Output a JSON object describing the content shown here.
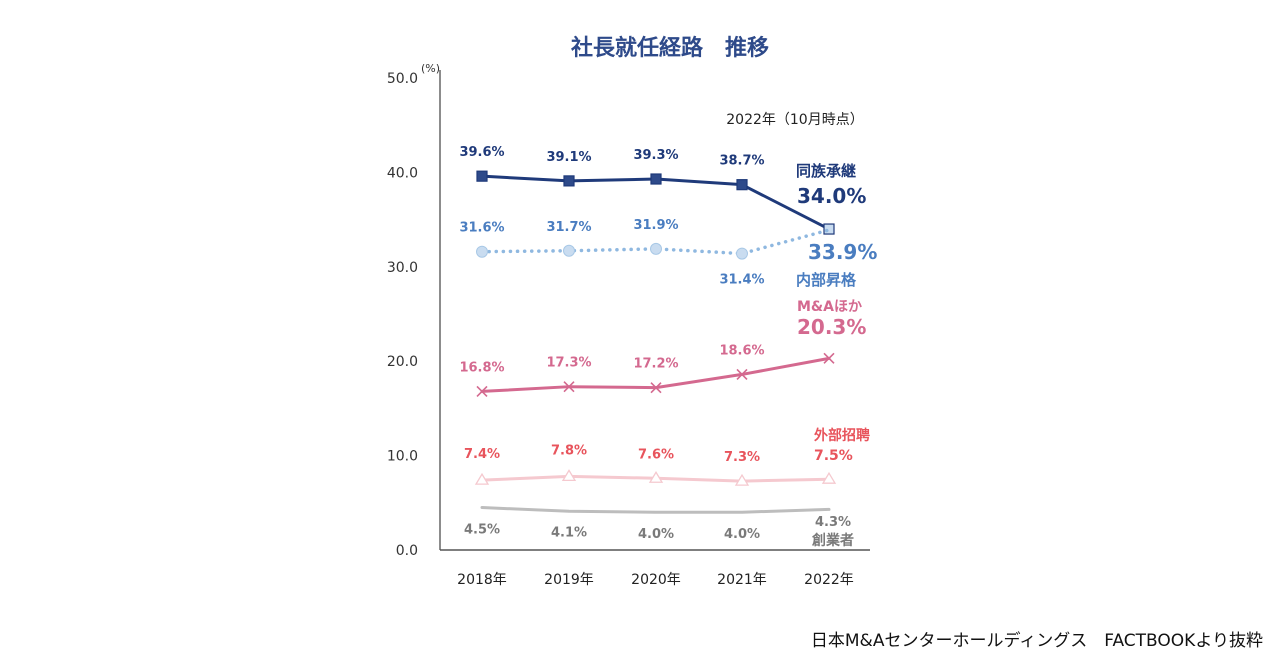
{
  "chart_data": {
    "type": "line",
    "title": "社長就任経路　推移",
    "xlabel": "",
    "ylabel": "",
    "y_unit_label": "(%)",
    "ylim": [
      0,
      50
    ],
    "yticks": [
      "0.0",
      "10.0",
      "20.0",
      "30.0",
      "40.0",
      "50.0"
    ],
    "ytick_values": [
      0,
      10,
      20,
      30,
      40,
      50
    ],
    "grid": false,
    "categories": [
      "2018年",
      "2019年",
      "2020年",
      "2021年",
      "2022年"
    ],
    "annotation": "2022年（10月時点）",
    "series": [
      {
        "name": "同族承継",
        "values": [
          39.6,
          39.1,
          39.3,
          38.7,
          34.0
        ],
        "labels": [
          "39.6%",
          "39.1%",
          "39.3%",
          "38.7%",
          "34.0%"
        ],
        "color": "#1f3a7a",
        "marker": "square",
        "line_style": "solid"
      },
      {
        "name": "内部昇格",
        "values": [
          31.6,
          31.7,
          31.9,
          31.4,
          33.9
        ],
        "labels": [
          "31.6%",
          "31.7%",
          "31.9%",
          "31.4%",
          "33.9%"
        ],
        "color": "#8fb8e0",
        "label_color": "#4a7dc0",
        "marker": "circle",
        "line_style": "dotted"
      },
      {
        "name": "M&Aほか",
        "values": [
          16.8,
          17.3,
          17.2,
          18.6,
          20.3
        ],
        "labels": [
          "16.8%",
          "17.3%",
          "17.2%",
          "18.6%",
          "20.3%"
        ],
        "color": "#d4698f",
        "marker": "x",
        "line_style": "solid"
      },
      {
        "name": "外部招聘",
        "values": [
          7.4,
          7.8,
          7.6,
          7.3,
          7.5
        ],
        "labels": [
          "7.4%",
          "7.8%",
          "7.6%",
          "7.3%",
          "7.5%"
        ],
        "color": "#f5c9cf",
        "label_color": "#e8545c",
        "marker": "triangle",
        "line_style": "solid"
      },
      {
        "name": "創業者",
        "values": [
          4.5,
          4.1,
          4.0,
          4.0,
          4.3
        ],
        "labels": [
          "4.5%",
          "4.1%",
          "4.0%",
          "4.0%",
          "4.3%"
        ],
        "color": "#bdbdbd",
        "label_color": "#7a7a7a",
        "marker": "none",
        "line_style": "solid"
      }
    ]
  },
  "footer": {
    "source": "日本M&Aセンターホールディングス　FACTBOOKより抜粋"
  }
}
